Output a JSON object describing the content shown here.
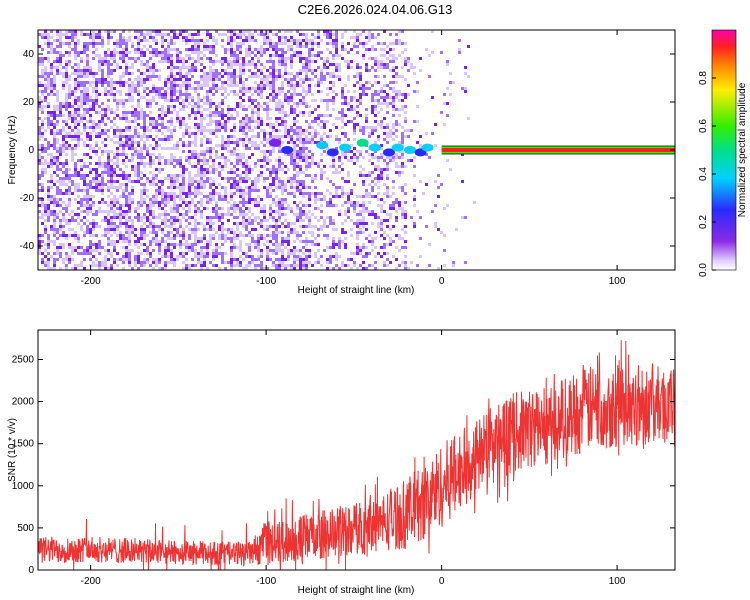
{
  "title": "C2E6.2026.024.04.06.G13",
  "chart_data": [
    {
      "type": "heatmap",
      "xlabel": "Height of straight line (km)",
      "ylabel": "Frequency (Hz)",
      "xlim": [
        -230,
        133
      ],
      "ylim": [
        -50,
        50
      ],
      "xticks": [
        -200,
        -100,
        0,
        100
      ],
      "yticks": [
        -40,
        -20,
        0,
        20,
        40
      ],
      "colorbar": {
        "label": "Normalized spectral amplitude",
        "range": [
          0.0,
          1.0
        ],
        "ticks": [
          "0.0",
          "0.2",
          "0.4",
          "0.6",
          "0.8"
        ]
      },
      "carrier": {
        "frequency": 0,
        "start_height": 0,
        "end_height": 133,
        "amplitude": 0.95
      },
      "noise_region": {
        "x_from": -230,
        "x_to": 18
      }
    },
    {
      "type": "line",
      "xlabel": "Height of straight line (km)",
      "ylabel": "SNR (10 * v/v)",
      "xlim": [
        -230,
        133
      ],
      "ylim": [
        0,
        2850
      ],
      "xticks": [
        -200,
        -100,
        0,
        100
      ],
      "yticks": [
        0,
        500,
        1000,
        1500,
        2000,
        2500
      ],
      "color": "#ee3333",
      "envelope": {
        "x": [
          -230,
          -200,
          -150,
          -110,
          -100,
          -80,
          -60,
          -40,
          -20,
          -10,
          0,
          10,
          20,
          30,
          40,
          60,
          80,
          100,
          120,
          133
        ],
        "lower": [
          80,
          90,
          60,
          50,
          60,
          100,
          150,
          200,
          250,
          350,
          500,
          700,
          900,
          1000,
          1150,
          1250,
          1400,
          1450,
          1500,
          1500
        ],
        "upper": [
          400,
          400,
          350,
          330,
          550,
          650,
          750,
          850,
          1100,
          1250,
          1500,
          1650,
          1800,
          1950,
          2100,
          2200,
          2400,
          2500,
          2450,
          2400
        ]
      }
    }
  ]
}
